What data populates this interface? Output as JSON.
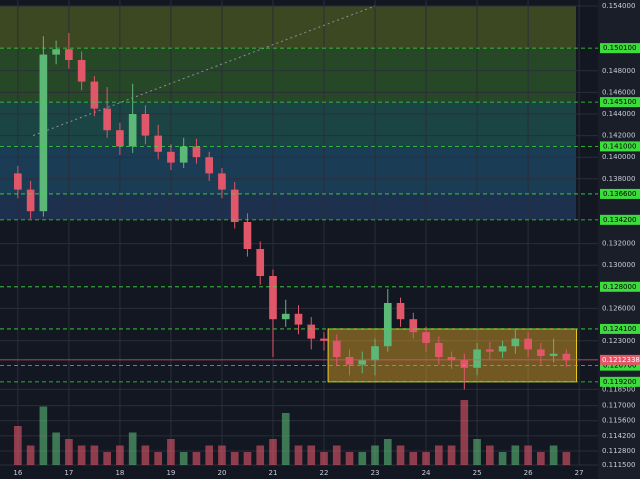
{
  "chart_data": {
    "type": "candlestick",
    "x": [
      16.0,
      16.25,
      16.5,
      16.75,
      17.0,
      17.25,
      17.5,
      17.75,
      18.0,
      18.25,
      18.5,
      18.75,
      19.0,
      19.25,
      19.5,
      19.75,
      20.0,
      20.25,
      20.5,
      20.75,
      21.0,
      21.25,
      21.5,
      21.75,
      22.0,
      22.25,
      22.5,
      22.75,
      23.0,
      23.25,
      23.5,
      23.75,
      24.0,
      24.25,
      24.5,
      24.75,
      25.0,
      25.25,
      25.5,
      25.75,
      26.0,
      26.25,
      26.5,
      26.75
    ],
    "open": [
      0.1385,
      0.137,
      0.135,
      0.1495,
      0.15,
      0.149,
      0.147,
      0.1445,
      0.1425,
      0.141,
      0.144,
      0.142,
      0.1405,
      0.1395,
      0.141,
      0.14,
      0.1385,
      0.137,
      0.134,
      0.1315,
      0.129,
      0.125,
      0.1255,
      0.1245,
      0.1232,
      0.123,
      0.1215,
      0.1208,
      0.1212,
      0.1225,
      0.1265,
      0.125,
      0.1238,
      0.1228,
      0.1215,
      0.1212,
      0.1205,
      0.1222,
      0.122,
      0.1225,
      0.1232,
      0.1222,
      0.1216,
      0.1218
    ],
    "close": [
      0.137,
      0.135,
      0.1495,
      0.15,
      0.149,
      0.147,
      0.1445,
      0.1425,
      0.141,
      0.144,
      0.142,
      0.1405,
      0.1395,
      0.141,
      0.14,
      0.1385,
      0.137,
      0.134,
      0.1315,
      0.129,
      0.125,
      0.1255,
      0.1245,
      0.1232,
      0.123,
      0.1215,
      0.1208,
      0.1212,
      0.1225,
      0.1265,
      0.125,
      0.1238,
      0.1228,
      0.1215,
      0.1212,
      0.1205,
      0.1222,
      0.122,
      0.1225,
      0.1232,
      0.1222,
      0.1216,
      0.1218,
      0.1212
    ],
    "high": [
      0.1392,
      0.1378,
      0.1512,
      0.1508,
      0.1515,
      0.1498,
      0.1475,
      0.1465,
      0.1432,
      0.1468,
      0.1448,
      0.143,
      0.1412,
      0.1418,
      0.1417,
      0.1405,
      0.139,
      0.1377,
      0.1348,
      0.1322,
      0.1296,
      0.1268,
      0.1263,
      0.1252,
      0.1238,
      0.1236,
      0.1222,
      0.122,
      0.1232,
      0.1278,
      0.127,
      0.1256,
      0.1243,
      0.1234,
      0.122,
      0.1218,
      0.1228,
      0.1229,
      0.123,
      0.124,
      0.1238,
      0.1228,
      0.1232,
      0.1222
    ],
    "low": [
      0.1362,
      0.1343,
      0.1345,
      0.1486,
      0.1482,
      0.1462,
      0.1438,
      0.1418,
      0.1402,
      0.1404,
      0.1412,
      0.1398,
      0.1388,
      0.139,
      0.1394,
      0.1378,
      0.1362,
      0.1334,
      0.1308,
      0.1282,
      0.1215,
      0.1243,
      0.1236,
      0.1222,
      0.1221,
      0.1207,
      0.1198,
      0.12,
      0.1198,
      0.122,
      0.1243,
      0.1232,
      0.122,
      0.1208,
      0.1204,
      0.1185,
      0.1198,
      0.1213,
      0.1214,
      0.1218,
      0.1215,
      0.1208,
      0.121,
      0.1206
    ],
    "volume": [
      6,
      3,
      9,
      5,
      4,
      3,
      3,
      2,
      3,
      5,
      3,
      2,
      4,
      2,
      2,
      3,
      3,
      2,
      2,
      3,
      4,
      8,
      3,
      3,
      2,
      3,
      2,
      2,
      3,
      4,
      3,
      2,
      2,
      3,
      3,
      10,
      4,
      3,
      2,
      3,
      3,
      2,
      3,
      2
    ],
    "up_color": "#5cb877",
    "down_color": "#e2566a",
    "xlim": [
      15.65,
      27.37
    ],
    "xticks": [
      16,
      17,
      18,
      19,
      20,
      21,
      22,
      23,
      24,
      25,
      26,
      27
    ],
    "ylim": [
      0.1115,
      0.154
    ],
    "yticks": [
      {
        "value": 0.154,
        "label": "0.154000"
      },
      {
        "value": 0.148,
        "label": "0.148000"
      },
      {
        "value": 0.146,
        "label": "0.146000"
      },
      {
        "value": 0.144,
        "label": "0.144000"
      },
      {
        "value": 0.142,
        "label": "0.142000"
      },
      {
        "value": 0.14,
        "label": "0.140000"
      },
      {
        "value": 0.138,
        "label": "0.138000"
      },
      {
        "value": 0.132,
        "label": "0.132000"
      },
      {
        "value": 0.13,
        "label": "0.130000"
      },
      {
        "value": 0.126,
        "label": "0.126000"
      },
      {
        "value": 0.123,
        "label": "0.123000"
      },
      {
        "value": 0.1185,
        "label": "0.118500"
      },
      {
        "value": 0.117,
        "label": "0.117000"
      },
      {
        "value": 0.1156,
        "label": "0.115600"
      },
      {
        "value": 0.1142,
        "label": "0.114200"
      },
      {
        "value": 0.1128,
        "label": "0.112800"
      },
      {
        "value": 0.1115,
        "label": "0.111500"
      }
    ],
    "levels": [
      {
        "value": 0.1501,
        "label": "0.150100"
      },
      {
        "value": 0.1451,
        "label": "0.145100"
      },
      {
        "value": 0.141,
        "label": "0.141000"
      },
      {
        "value": 0.1366,
        "label": "0.136600"
      },
      {
        "value": 0.1342,
        "label": "0.134200"
      },
      {
        "value": 0.128,
        "label": "0.128000"
      },
      {
        "value": 0.1241,
        "label": "0.124100"
      },
      {
        "value": 0.1207,
        "label": "0.120700"
      },
      {
        "value": 0.1192,
        "label": "0.119200"
      }
    ],
    "zone_colors": [
      "#4a5a22",
      "#2f5a2a",
      "#1f5450",
      "#1d4a66",
      "#223a5c"
    ],
    "current_price": {
      "value": 0.12123384,
      "label": "0.12123384"
    },
    "box_x": [
      22.08,
      26.95
    ],
    "trendline": {
      "x": [
        16.3,
        23.0
      ],
      "y": [
        0.142,
        0.154
      ]
    },
    "grid": true
  }
}
